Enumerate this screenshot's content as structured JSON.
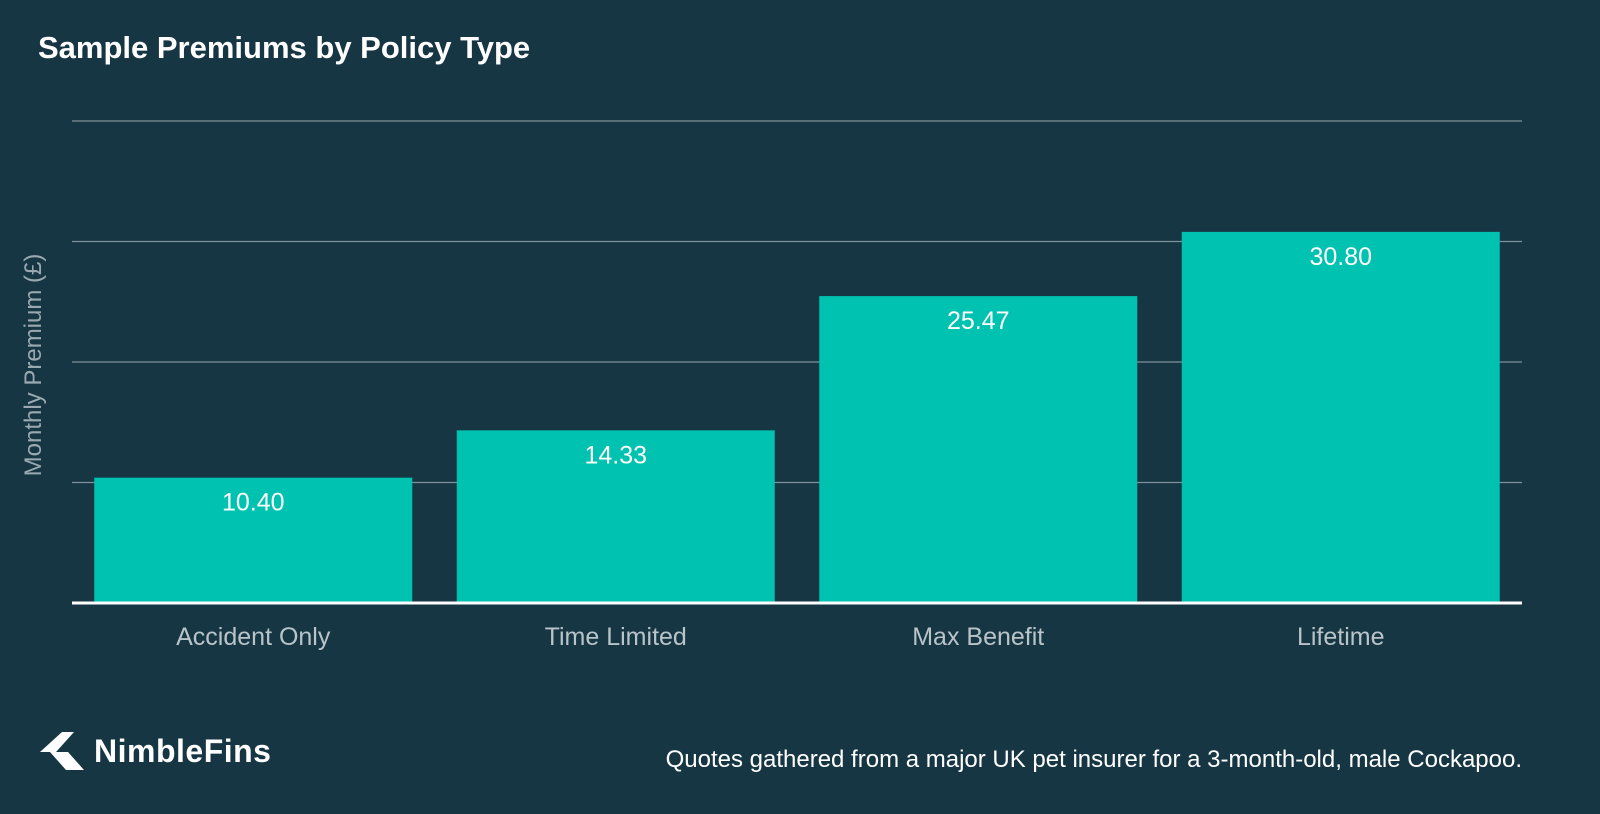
{
  "chart_data": {
    "type": "bar",
    "title": "Sample Premiums by Policy Type",
    "ylabel": "Monthly Premium (£)",
    "xlabel": "",
    "categories": [
      "Accident Only",
      "Time Limited",
      "Max Benefit",
      "Lifetime"
    ],
    "values": [
      10.4,
      14.33,
      25.47,
      30.8
    ],
    "value_labels": [
      "10.40",
      "14.33",
      "25.47",
      "30.80"
    ],
    "ylim": [
      0,
      40
    ],
    "grid": true,
    "bar_color": "#00c2b0"
  },
  "footer": {
    "note": "Quotes gathered from a major UK pet insurer for a 3-month-old, male Cockapoo."
  },
  "brand": {
    "name": "NimbleFins",
    "icon": "nimblefins-logo-icon"
  },
  "colors": {
    "background": "#163644",
    "grid": "#7f9199",
    "baseline": "#ffffff"
  }
}
